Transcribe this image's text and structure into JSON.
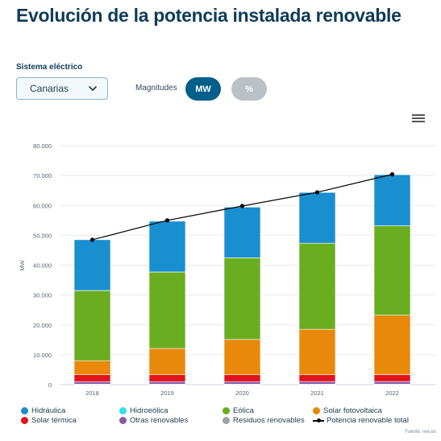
{
  "page": {
    "title": "Evolución de la potencia instalada renovable"
  },
  "controls": {
    "system_label": "Sistema eléctrico",
    "system_value": "Canarias",
    "magnitudes_label": "Magnitudes",
    "mw_label": "MW",
    "pct_label": "%",
    "menu_icon": "hamburger-menu-icon"
  },
  "source": "Fuente: ree.es",
  "chart_data": {
    "type": "bar",
    "stacked": true,
    "categories": [
      "2018",
      "2019",
      "2020",
      "2021",
      "2022"
    ],
    "ylabel": "MW",
    "ylim": [
      0,
      80000
    ],
    "yticks": [
      "0",
      "10.000",
      "20.000",
      "30.000",
      "40.000",
      "50.000",
      "60.000",
      "70.000",
      "80.000"
    ],
    "grid": true,
    "legend_position": "bottom",
    "series": [
      {
        "name": "Hidráulica",
        "color": "#1a8fd0",
        "values": [
          17000,
          17000,
          17000,
          17000,
          17100
        ]
      },
      {
        "name": "Hidroeólica",
        "color": "#2fe0e8",
        "values": [
          11,
          11,
          11,
          11,
          11
        ]
      },
      {
        "name": "Eólica",
        "color": "#6aad20",
        "values": [
          23500,
          25600,
          27300,
          28800,
          29900
        ]
      },
      {
        "name": "Solar fotovoltaica",
        "color": "#e8890c",
        "values": [
          4700,
          8800,
          11800,
          15200,
          19900
        ]
      },
      {
        "name": "Solar térmica",
        "color": "#e3121b",
        "values": [
          2300,
          2300,
          2300,
          2300,
          2300
        ]
      },
      {
        "name": "Otras renovables",
        "color": "#8c5aa5",
        "values": [
          850,
          850,
          860,
          880,
          900
        ]
      },
      {
        "name": "Residuos renovables",
        "color": "#9aa3a8",
        "values": [
          165,
          165,
          165,
          165,
          165
        ]
      }
    ],
    "line_series": {
      "name": "Potencia renovable total",
      "color": "#000000",
      "values": [
        48500,
        55000,
        59800,
        64400,
        70400
      ]
    }
  }
}
